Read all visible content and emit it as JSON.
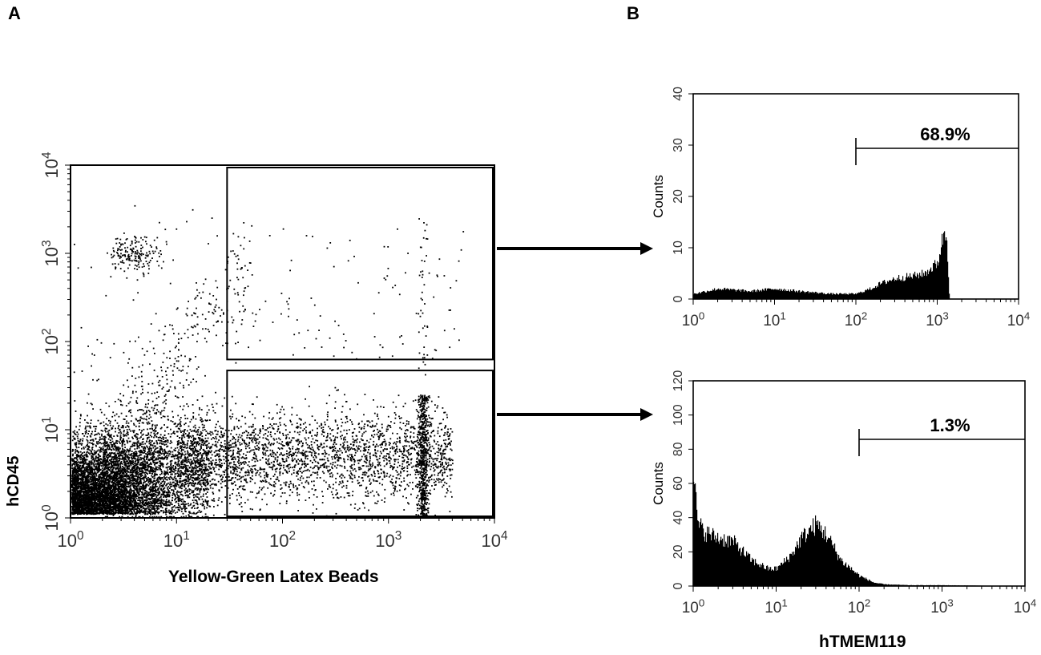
{
  "panels": {
    "a_label": "A",
    "b_label": "B"
  },
  "chart_data": [
    {
      "type": "scatter",
      "panel": "A",
      "xlabel": "Yellow-Green  Latex Beads",
      "ylabel": "hCD45",
      "xscale": "log",
      "yscale": "log",
      "xlim": [
        1,
        10000
      ],
      "ylim": [
        1,
        10000
      ],
      "x_ticks": [
        "10^0",
        "10^1",
        "10^2",
        "10^3",
        "10^4"
      ],
      "y_ticks": [
        "10^0",
        "10^1",
        "10^2",
        "10^3",
        "10^4"
      ],
      "gates": [
        {
          "name": "upper-gate",
          "x_range": [
            30,
            10000
          ],
          "y_range": [
            60,
            10000
          ]
        },
        {
          "name": "lower-gate",
          "x_range": [
            30,
            10000
          ],
          "y_range": [
            1,
            50
          ]
        }
      ],
      "population_clusters": [
        {
          "x_center": 1.3,
          "y_center": 3,
          "note": "dense CD45-low, bead-low"
        },
        {
          "x_center": 4,
          "y_center": 1000,
          "note": "CD45-high cluster"
        },
        {
          "x_center": 2000,
          "y_center": 5,
          "note": "bead-high streak"
        }
      ],
      "grid": false
    },
    {
      "type": "histogram",
      "panel": "B-top",
      "ylabel": "Counts",
      "xscale": "log",
      "xlim": [
        1,
        10000
      ],
      "ylim": [
        0,
        40
      ],
      "y_ticks": [
        0,
        10,
        20,
        30,
        40
      ],
      "x_ticks": [
        "10^0",
        "10^1",
        "10^2",
        "10^3",
        "10^4"
      ],
      "marker": {
        "x_range": [
          100,
          10000
        ],
        "label": "68.9%"
      },
      "profile": {
        "x": [
          1,
          2,
          5,
          10,
          20,
          50,
          100,
          150,
          200,
          300,
          500,
          700,
          1000,
          1200,
          1300,
          1400
        ],
        "counts": [
          1,
          2,
          1.5,
          2,
          1.5,
          1,
          1,
          2,
          3,
          4,
          4.5,
          5,
          7,
          13,
          12,
          0
        ]
      }
    },
    {
      "type": "histogram",
      "panel": "B-bottom",
      "ylabel": "Counts",
      "xlabel": "hTMEM119",
      "xscale": "log",
      "xlim": [
        1,
        10000
      ],
      "ylim": [
        0,
        120
      ],
      "y_ticks": [
        0,
        20,
        40,
        60,
        80,
        100,
        120
      ],
      "x_ticks": [
        "10^0",
        "10^1",
        "10^2",
        "10^3",
        "10^4"
      ],
      "marker": {
        "x_range": [
          100,
          10000
        ],
        "label": "1.3%"
      },
      "profile": {
        "x": [
          1,
          1.1,
          1.3,
          1.6,
          2,
          3,
          5,
          8,
          10,
          15,
          20,
          30,
          40,
          60,
          100,
          150,
          200,
          400,
          1000,
          10000
        ],
        "counts": [
          72,
          38,
          32,
          30,
          28,
          26,
          15,
          10,
          10,
          18,
          28,
          36,
          30,
          15,
          6,
          2,
          1,
          0.5,
          0.5,
          0
        ]
      }
    }
  ]
}
